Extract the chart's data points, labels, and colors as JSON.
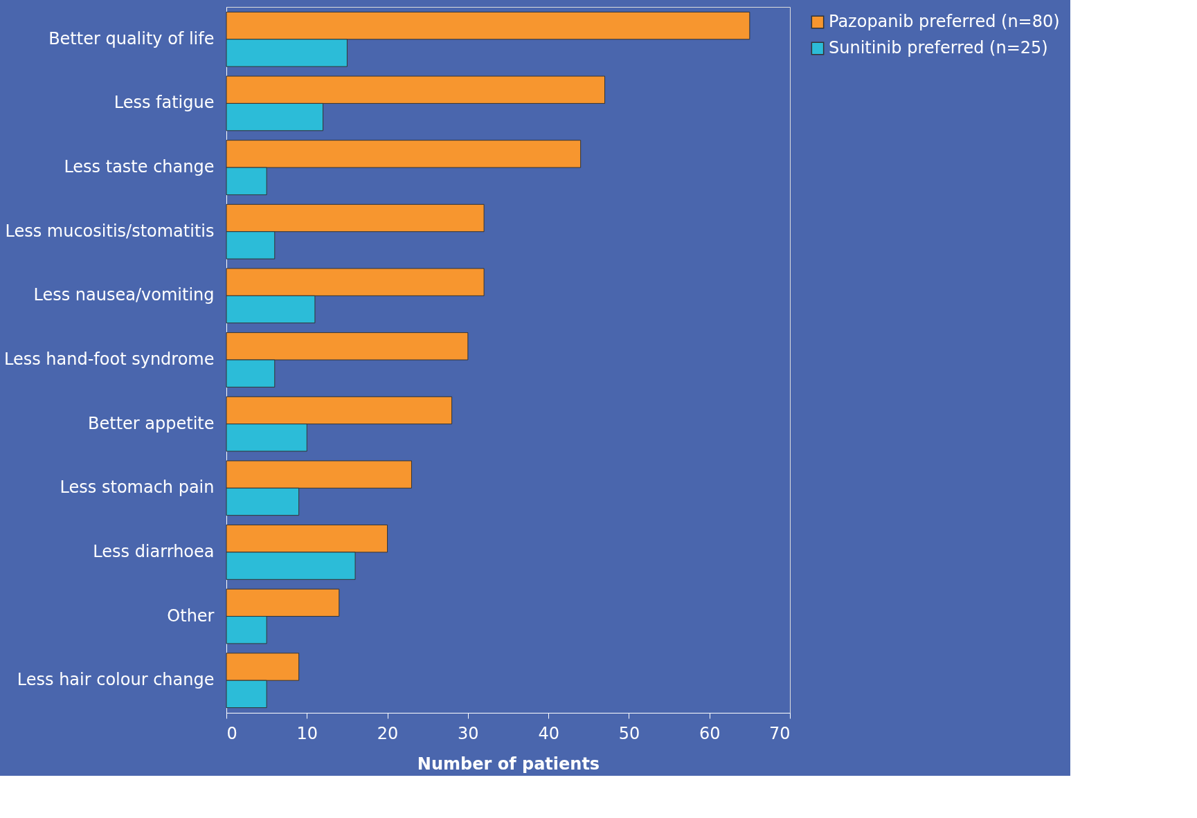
{
  "chart_data": {
    "type": "bar",
    "orientation": "horizontal",
    "xlabel": "Number of patients",
    "categories": [
      "Better quality of life",
      "Less fatigue",
      "Less taste change",
      "Less mucositis/stomatitis",
      "Less nausea/vomiting",
      "Less hand-foot syndrome",
      "Better appetite",
      "Less stomach pain",
      "Less diarrhoea",
      "Other",
      "Less hair colour change"
    ],
    "series": [
      {
        "name": "Pazopanib preferred (n=80)",
        "color": "#f7962f",
        "values": [
          65,
          47,
          44,
          32,
          32,
          30,
          28,
          23,
          20,
          14,
          9
        ]
      },
      {
        "name": "Sunitinib preferred (n=25)",
        "color": "#2cbcd8",
        "values": [
          15,
          12,
          5,
          6,
          11,
          6,
          10,
          9,
          16,
          5,
          5
        ]
      }
    ],
    "xlim": [
      0,
      70
    ],
    "xticks": [
      0,
      10,
      20,
      30,
      40,
      50,
      60,
      70
    ],
    "grid": false,
    "legend": "right"
  }
}
